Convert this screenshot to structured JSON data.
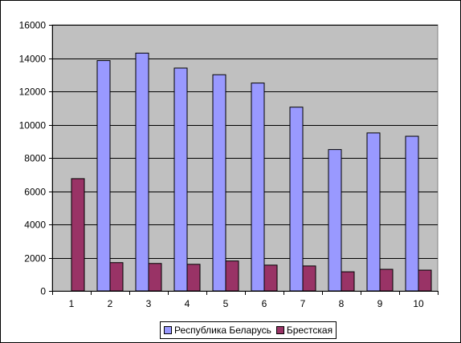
{
  "chart_data": {
    "type": "bar",
    "title": "",
    "xlabel": "",
    "ylabel": "",
    "categories": [
      "1",
      "2",
      "3",
      "4",
      "5",
      "6",
      "7",
      "8",
      "9",
      "10"
    ],
    "series": [
      {
        "name": "Республика Беларусь",
        "color": "#9999FF",
        "values": [
          null,
          13850,
          14300,
          13400,
          13000,
          12500,
          11050,
          8500,
          9500,
          9300
        ]
      },
      {
        "name": "Брестская",
        "color": "#993366",
        "values": [
          6750,
          1700,
          1650,
          1600,
          1800,
          1550,
          1500,
          1150,
          1300,
          1250
        ]
      }
    ],
    "ylim": [
      0,
      16000
    ],
    "yticks": [
      0,
      2000,
      4000,
      6000,
      8000,
      10000,
      12000,
      14000,
      16000
    ],
    "grid": true,
    "plot_background": "#C0C0C0",
    "legend_position": "bottom"
  }
}
